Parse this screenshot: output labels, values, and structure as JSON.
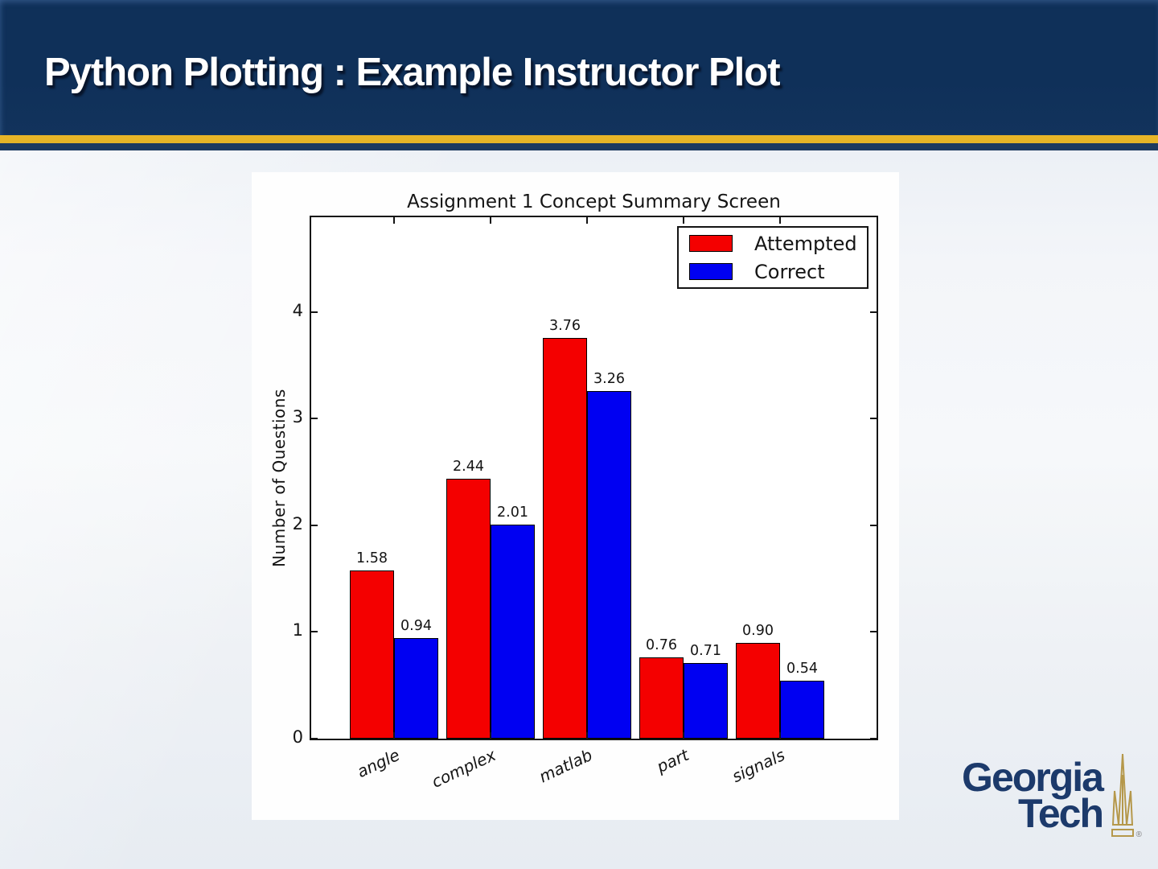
{
  "slide": {
    "title": "Python Plotting : Example Instructor Plot",
    "colors": {
      "header_navy": "#0f3059",
      "gold": "#e7b527",
      "stripe_navy": "#1d3a5f",
      "logo_navy": "#1c3a6b",
      "tower_gold": "#b5984b"
    },
    "logo": {
      "line1": "Georgia",
      "line2": "Tech",
      "registered": "®",
      "tower_icon": "tech-tower-icon"
    }
  },
  "chart_data": {
    "type": "bar",
    "title": "Assignment 1 Concept Summary Screen",
    "xlabel": "",
    "ylabel": "Number of Questions",
    "categories": [
      "angle",
      "complex",
      "matlab",
      "part",
      "signals"
    ],
    "series": [
      {
        "name": "Attempted",
        "color": "#f40000",
        "values": [
          1.58,
          2.44,
          3.76,
          0.76,
          0.9
        ]
      },
      {
        "name": "Correct",
        "color": "#0000f2",
        "values": [
          0.94,
          2.01,
          3.26,
          0.71,
          0.54
        ]
      }
    ],
    "yticks": [
      0,
      1,
      2,
      3,
      4
    ],
    "ylim": [
      0,
      4.89
    ],
    "grid": false,
    "legend_position": "upper right",
    "bar_value_labels_decimals": 2,
    "category_label_rotation_deg": -25
  }
}
